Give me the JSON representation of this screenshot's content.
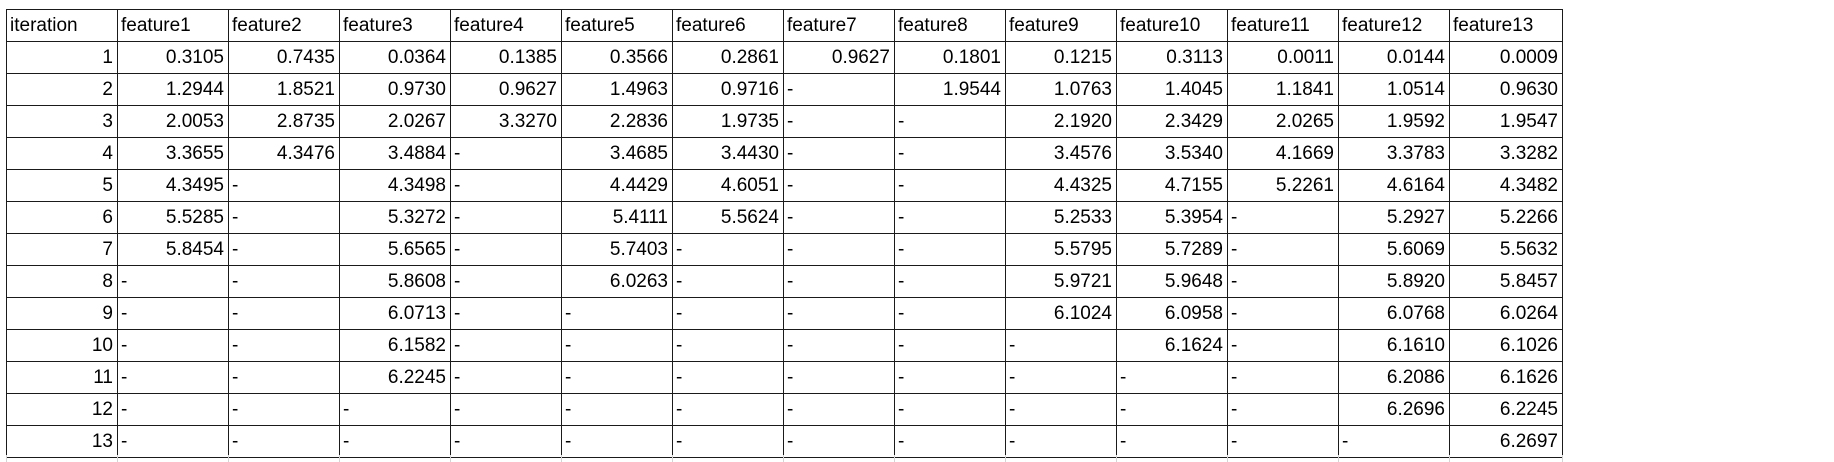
{
  "table": {
    "headers": [
      "iteration",
      "feature1",
      "feature2",
      "feature3",
      "feature4",
      "feature5",
      "feature6",
      "feature7",
      "feature8",
      "feature9",
      "feature10",
      "feature11",
      "feature12",
      "feature13"
    ],
    "rows": [
      [
        "1",
        "0.3105",
        "0.7435",
        "0.0364",
        "0.1385",
        "0.3566",
        "0.2861",
        "0.9627",
        "0.1801",
        "0.1215",
        "0.3113",
        "0.0011",
        "0.0144",
        "0.0009"
      ],
      [
        "2",
        "1.2944",
        "1.8521",
        "0.9730",
        "0.9627",
        "1.4963",
        "0.9716",
        "-",
        "1.9544",
        "1.0763",
        "1.4045",
        "1.1841",
        "1.0514",
        "0.9630"
      ],
      [
        "3",
        "2.0053",
        "2.8735",
        "2.0267",
        "3.3270",
        "2.2836",
        "1.9735",
        "-",
        "-",
        "2.1920",
        "2.3429",
        "2.0265",
        "1.9592",
        "1.9547"
      ],
      [
        "4",
        "3.3655",
        "4.3476",
        "3.4884",
        "-",
        "3.4685",
        "3.4430",
        "-",
        "-",
        "3.4576",
        "3.5340",
        "4.1669",
        "3.3783",
        "3.3282"
      ],
      [
        "5",
        "4.3495",
        "-",
        "4.3498",
        "-",
        "4.4429",
        "4.6051",
        "-",
        "-",
        "4.4325",
        "4.7155",
        "5.2261",
        "4.6164",
        "4.3482"
      ],
      [
        "6",
        "5.5285",
        "-",
        "5.3272",
        "-",
        "5.4111",
        "5.5624",
        "-",
        "-",
        "5.2533",
        "5.3954",
        "-",
        "5.2927",
        "5.2266"
      ],
      [
        "7",
        "5.8454",
        "-",
        "5.6565",
        "-",
        "5.7403",
        "-",
        "-",
        "-",
        "5.5795",
        "5.7289",
        "-",
        "5.6069",
        "5.5632"
      ],
      [
        "8",
        "-",
        "-",
        "5.8608",
        "-",
        "6.0263",
        "-",
        "-",
        "-",
        "5.9721",
        "5.9648",
        "-",
        "5.8920",
        "5.8457"
      ],
      [
        "9",
        "-",
        "-",
        "6.0713",
        "-",
        "-",
        "-",
        "-",
        "-",
        "6.1024",
        "6.0958",
        "-",
        "6.0768",
        "6.0264"
      ],
      [
        "10",
        "-",
        "-",
        "6.1582",
        "-",
        "-",
        "-",
        "-",
        "-",
        "-",
        "6.1624",
        "-",
        "6.1610",
        "6.1026"
      ],
      [
        "11",
        "-",
        "-",
        "6.2245",
        "-",
        "-",
        "-",
        "-",
        "-",
        "-",
        "-",
        "-",
        "6.2086",
        "6.1626"
      ],
      [
        "12",
        "-",
        "-",
        "-",
        "-",
        "-",
        "-",
        "-",
        "-",
        "-",
        "-",
        "-",
        "6.2696",
        "6.2245"
      ],
      [
        "13",
        "-",
        "-",
        "-",
        "-",
        "-",
        "-",
        "-",
        "-",
        "-",
        "-",
        "-",
        "-",
        "6.2697"
      ]
    ]
  }
}
